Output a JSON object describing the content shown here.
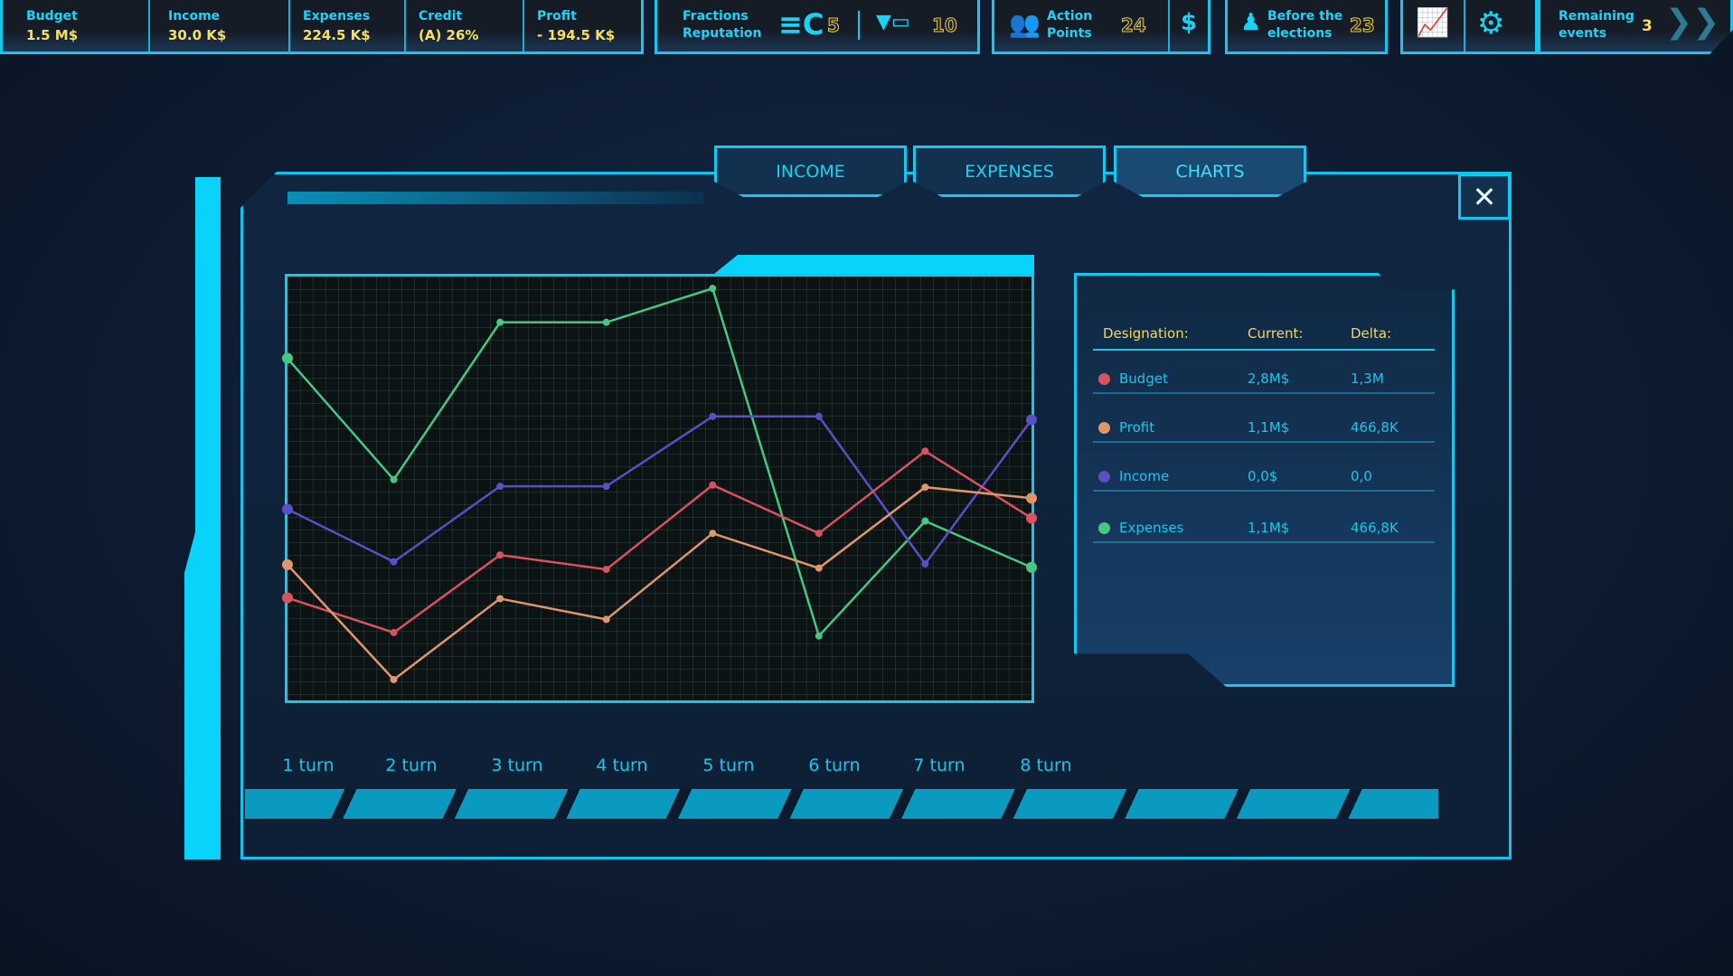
{
  "topbar": {
    "budget": {
      "label": "Budget",
      "value": "1.5 M$"
    },
    "income": {
      "label": "Income",
      "value": "30.0 K$"
    },
    "expenses": {
      "label": "Expenses",
      "value": "224.5 K$"
    },
    "credit": {
      "label": "Credit",
      "value": "(A) 26%"
    },
    "profit": {
      "label": "Profit",
      "value": "- 194.5 K$"
    },
    "fractions": {
      "label1": "Fractions",
      "label2": "Reputation",
      "value1": "5",
      "value2": "10"
    },
    "action": {
      "label1": "Action",
      "label2": "Points",
      "value": "24",
      "money_icon": "$"
    },
    "elections": {
      "label1": "Before the",
      "label2": "elections",
      "value": "23"
    },
    "remaining": {
      "label1": "Remaining",
      "label2": "events",
      "value": "3"
    }
  },
  "tabs": [
    {
      "label": "INCOME"
    },
    {
      "label": "EXPENSES"
    },
    {
      "label": "CHARTS",
      "active": true
    }
  ],
  "close_icon": "✕",
  "legend": {
    "headers": [
      "Designation:",
      "Current:",
      "Delta:"
    ],
    "rows": [
      {
        "name": "Budget",
        "current": "2,8M$",
        "delta": "1,3M",
        "color": "#d9535f"
      },
      {
        "name": "Profit",
        "current": "1,1M$",
        "delta": "466,8K",
        "color": "#e0956a"
      },
      {
        "name": "Income",
        "current": "0,0$",
        "delta": "0,0",
        "color": "#5a4fc4"
      },
      {
        "name": "Expenses",
        "current": "1,1M$",
        "delta": "466,8K",
        "color": "#45c884"
      }
    ]
  },
  "chart_data": {
    "type": "line",
    "categories": [
      "1 turn",
      "2 turn",
      "3 turn",
      "4 turn",
      "5 turn",
      "6 turn",
      "7 turn",
      "8 turn"
    ],
    "ylim": [
      0,
      100
    ],
    "grid": true,
    "series": [
      {
        "name": "Expenses",
        "color": "#45c884",
        "values": [
          80.7,
          52.1,
          89.2,
          89.2,
          97.2,
          15.2,
          42.3,
          31.4
        ]
      },
      {
        "name": "Income",
        "color": "#5a4fc4",
        "values": [
          45.1,
          32.7,
          50.5,
          50.5,
          67,
          67,
          32.2,
          66.2
        ]
      },
      {
        "name": "Budget",
        "color": "#d9535f",
        "values": [
          24.2,
          16,
          34.3,
          30.9,
          50.8,
          39.4,
          58.8,
          43
        ]
      },
      {
        "name": "Profit",
        "color": "#e0956a",
        "values": [
          32,
          4.9,
          24,
          19.1,
          39.4,
          31.2,
          50.3,
          47.7
        ]
      }
    ]
  }
}
